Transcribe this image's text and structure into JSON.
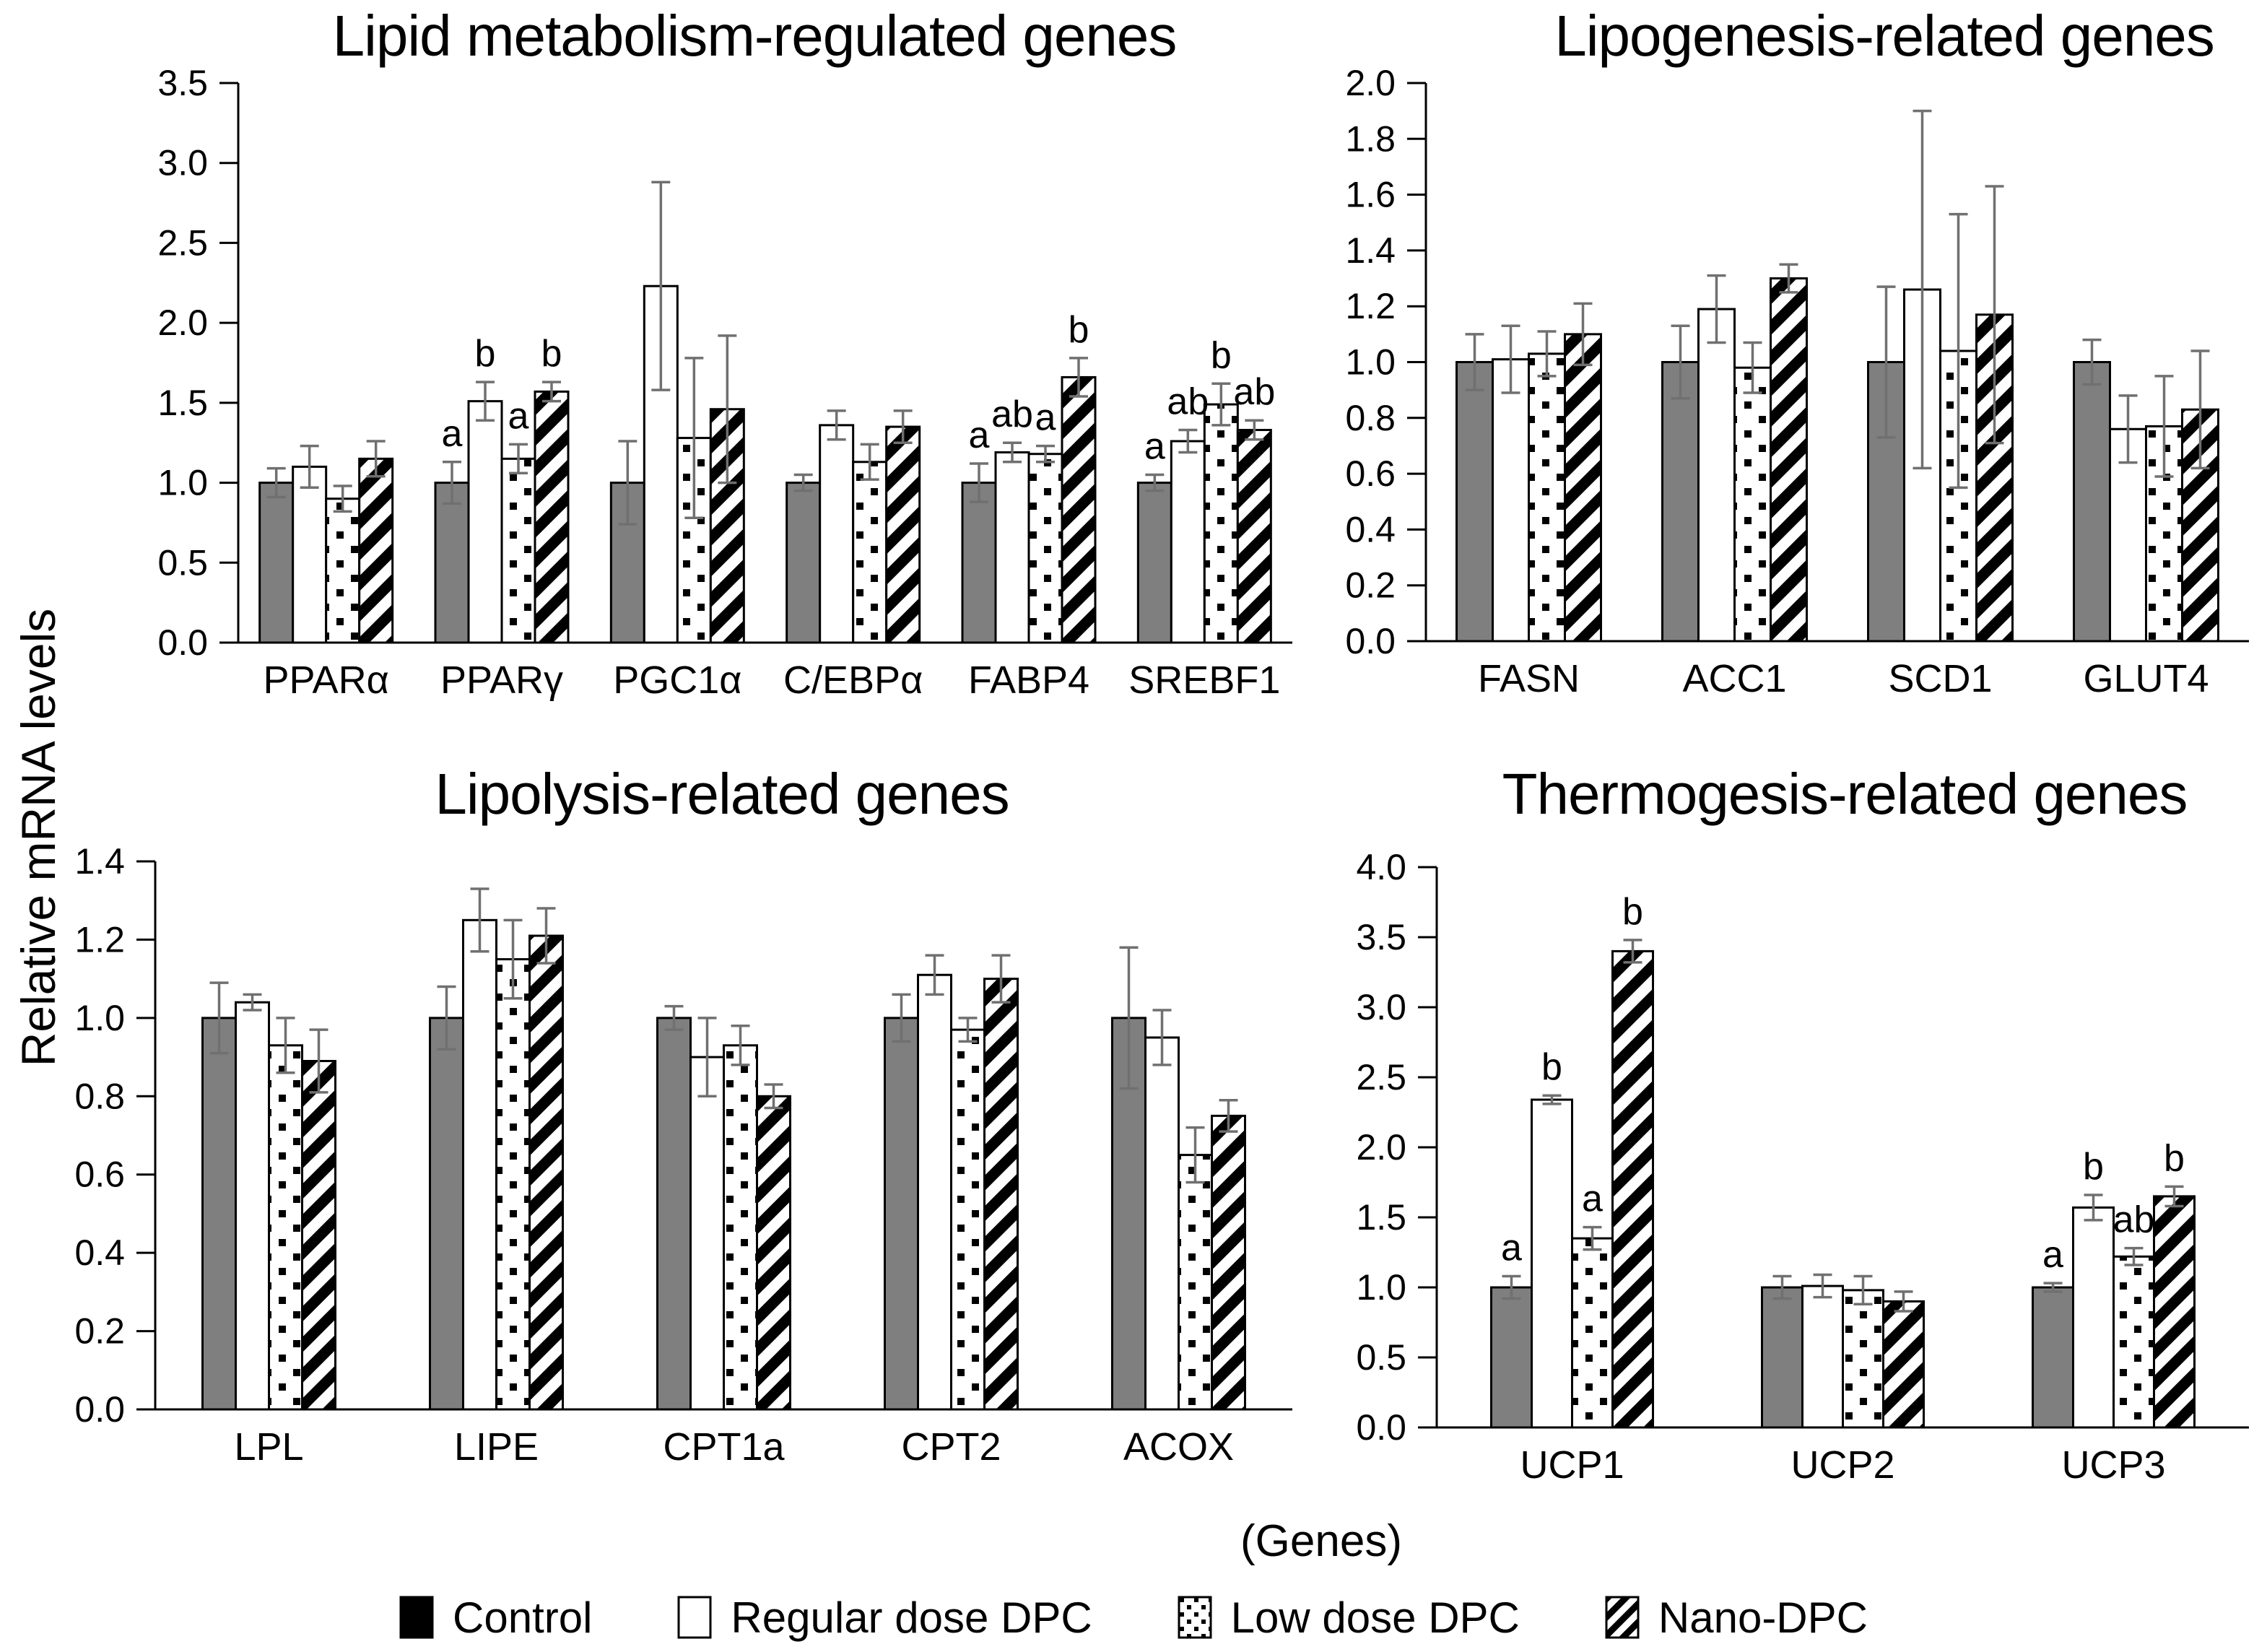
{
  "figure": {
    "y_axis_label": "Relative mRNA levels",
    "x_axis_label": "(Genes)",
    "legend": [
      {
        "label": "Control",
        "pattern": "solid-black"
      },
      {
        "label": "Regular dose DPC",
        "pattern": "white"
      },
      {
        "label": "Low dose DPC",
        "pattern": "dots"
      },
      {
        "label": "Nano-DPC",
        "pattern": "diagonal-stripes"
      }
    ],
    "legend_position": "bottom",
    "colors": {
      "control_bar_fill": "#7f7f7f",
      "bar_fill_white": "#ffffff",
      "pattern_color": "#000000",
      "bar_border": "#000000",
      "error_bar": "#707070",
      "legend_control_swatch": "#000000"
    }
  },
  "chart_data": [
    {
      "type": "bar",
      "title": "Lipid metabolism-regulated genes",
      "categories": [
        "PPARα",
        "PPARγ",
        "PGC1α",
        "C/EBPα",
        "FABP4",
        "SREBF1"
      ],
      "ylim": [
        0,
        3.5
      ],
      "ytick_step": 0.5,
      "grid": false,
      "series": [
        {
          "name": "Control",
          "values": [
            1.0,
            1.0,
            1.0,
            1.0,
            1.0,
            1.0
          ],
          "errors": [
            0.09,
            0.13,
            0.26,
            0.05,
            0.12,
            0.05
          ]
        },
        {
          "name": "Regular dose DPC",
          "values": [
            1.1,
            1.51,
            2.23,
            1.36,
            1.19,
            1.26
          ],
          "errors": [
            0.13,
            0.12,
            0.65,
            0.09,
            0.06,
            0.07
          ]
        },
        {
          "name": "Low dose DPC",
          "values": [
            0.9,
            1.15,
            1.28,
            1.13,
            1.18,
            1.49
          ],
          "errors": [
            0.08,
            0.09,
            0.5,
            0.11,
            0.05,
            0.13
          ]
        },
        {
          "name": "Nano-DPC",
          "values": [
            1.15,
            1.57,
            1.46,
            1.35,
            1.66,
            1.33
          ],
          "errors": [
            0.11,
            0.06,
            0.46,
            0.1,
            0.12,
            0.06
          ]
        }
      ],
      "sig_letters": [
        [
          "",
          "a",
          "",
          "",
          "a",
          "a"
        ],
        [
          "",
          "b",
          "",
          "",
          "ab",
          "ab"
        ],
        [
          "",
          "a",
          "",
          "",
          "a",
          "b"
        ],
        [
          "",
          "b",
          "",
          "",
          "b",
          "ab"
        ]
      ]
    },
    {
      "type": "bar",
      "title": "Lipogenesis-related genes",
      "categories": [
        "FASN",
        "ACC1",
        "SCD1",
        "GLUT4"
      ],
      "ylim": [
        0,
        2.0
      ],
      "ytick_step": 0.2,
      "grid": false,
      "series": [
        {
          "name": "Control",
          "values": [
            1.0,
            1.0,
            1.0,
            1.0
          ],
          "errors": [
            0.1,
            0.13,
            0.27,
            0.08
          ]
        },
        {
          "name": "Regular dose DPC",
          "values": [
            1.01,
            1.19,
            1.26,
            0.76
          ],
          "errors": [
            0.12,
            0.12,
            0.64,
            0.12
          ]
        },
        {
          "name": "Low dose DPC",
          "values": [
            1.03,
            0.98,
            1.04,
            0.77
          ],
          "errors": [
            0.08,
            0.09,
            0.49,
            0.18
          ]
        },
        {
          "name": "Nano-DPC",
          "values": [
            1.1,
            1.3,
            1.17,
            0.83
          ],
          "errors": [
            0.11,
            0.05,
            0.46,
            0.21
          ]
        }
      ],
      "sig_letters": [
        [
          "",
          "",
          "",
          ""
        ],
        [
          "",
          "",
          "",
          ""
        ],
        [
          "",
          "",
          "",
          ""
        ],
        [
          "",
          "",
          "",
          ""
        ]
      ]
    },
    {
      "type": "bar",
      "title": "Lipolysis-related genes",
      "categories": [
        "LPL",
        "LIPE",
        "CPT1a",
        "CPT2",
        "ACOX"
      ],
      "ylim": [
        0,
        1.4
      ],
      "ytick_step": 0.2,
      "grid": false,
      "series": [
        {
          "name": "Control",
          "values": [
            1.0,
            1.0,
            1.0,
            1.0,
            1.0
          ],
          "errors": [
            0.09,
            0.08,
            0.03,
            0.06,
            0.18
          ]
        },
        {
          "name": "Regular dose DPC",
          "values": [
            1.04,
            1.25,
            0.9,
            1.11,
            0.95
          ],
          "errors": [
            0.02,
            0.08,
            0.1,
            0.05,
            0.07
          ]
        },
        {
          "name": "Low dose DPC",
          "values": [
            0.93,
            1.15,
            0.93,
            0.97,
            0.65
          ],
          "errors": [
            0.07,
            0.1,
            0.05,
            0.03,
            0.07
          ]
        },
        {
          "name": "Nano-DPC",
          "values": [
            0.89,
            1.21,
            0.8,
            1.1,
            0.75
          ],
          "errors": [
            0.08,
            0.07,
            0.03,
            0.06,
            0.04
          ]
        }
      ],
      "sig_letters": [
        [
          "",
          "",
          "",
          "",
          ""
        ],
        [
          "",
          "",
          "",
          "",
          ""
        ],
        [
          "",
          "",
          "",
          "",
          ""
        ],
        [
          "",
          "",
          "",
          "",
          ""
        ]
      ]
    },
    {
      "type": "bar",
      "title": "Thermogesis-related genes",
      "categories": [
        "UCP1",
        "UCP2",
        "UCP3"
      ],
      "ylim": [
        0,
        4.0
      ],
      "ytick_step": 0.5,
      "grid": false,
      "series": [
        {
          "name": "Control",
          "values": [
            1.0,
            1.0,
            1.0
          ],
          "errors": [
            0.08,
            0.08,
            0.03
          ]
        },
        {
          "name": "Regular dose DPC",
          "values": [
            2.34,
            1.01,
            1.57
          ],
          "errors": [
            0.03,
            0.08,
            0.09
          ]
        },
        {
          "name": "Low dose DPC",
          "values": [
            1.35,
            0.98,
            1.22
          ],
          "errors": [
            0.08,
            0.1,
            0.06
          ]
        },
        {
          "name": "Nano-DPC",
          "values": [
            3.4,
            0.9,
            1.65
          ],
          "errors": [
            0.08,
            0.07,
            0.07
          ]
        }
      ],
      "sig_letters": [
        [
          "a",
          "",
          "a"
        ],
        [
          "b",
          "",
          "b"
        ],
        [
          "a",
          "",
          "ab"
        ],
        [
          "b",
          "",
          "b"
        ]
      ]
    }
  ]
}
